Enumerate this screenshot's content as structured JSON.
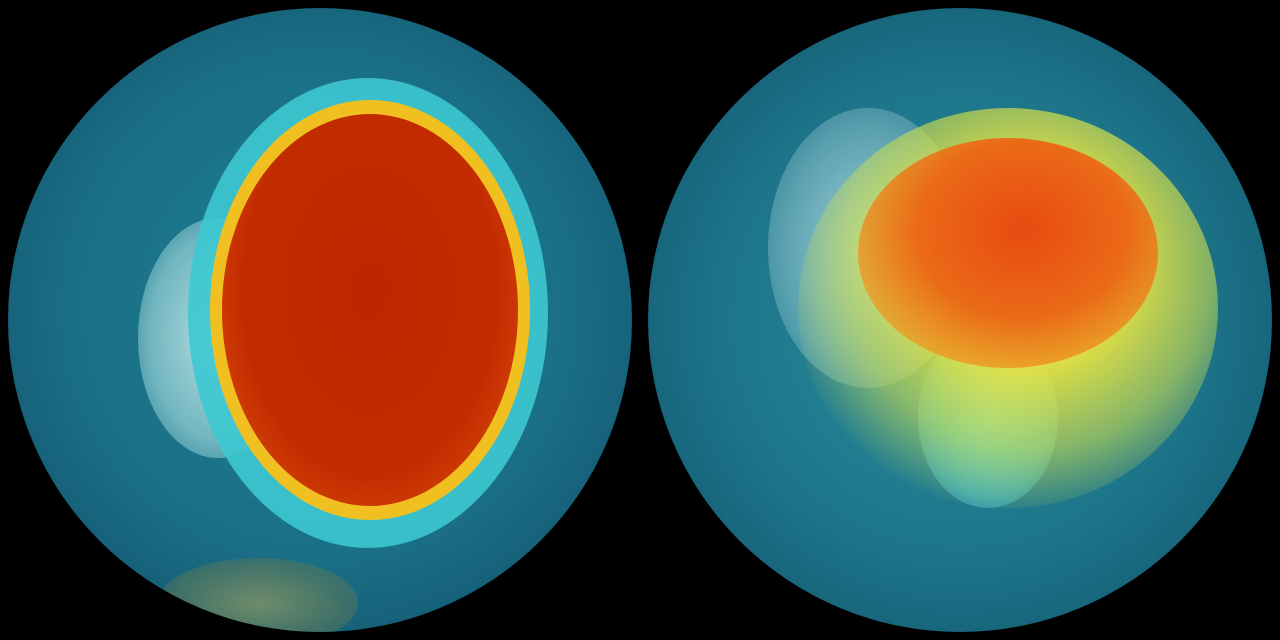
{
  "image": {
    "globes": [
      {
        "colors": {
          "ocean": "#1a6f86",
          "core": "#c02800",
          "rim": "#f5e02a",
          "land": "#a8d8dc"
        }
      },
      {
        "colors": {
          "ocean": "#1d7489",
          "core": "#e8641a",
          "halo": "#e8e040",
          "land": "#4cc8d0"
        }
      }
    ]
  }
}
